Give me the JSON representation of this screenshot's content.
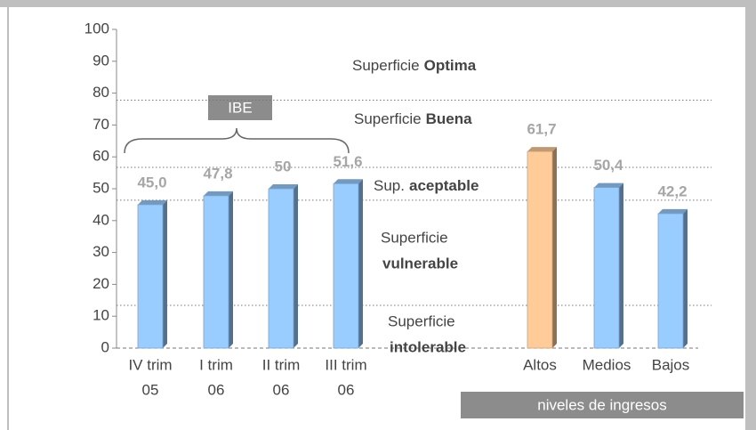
{
  "chart_data": {
    "type": "bar",
    "categories": [
      [
        "IV trim",
        "05"
      ],
      [
        "I trim",
        "06"
      ],
      [
        "II trim",
        "06"
      ],
      [
        "III trim",
        "06"
      ],
      [
        "Altos"
      ],
      [
        "Medios"
      ],
      [
        "Bajos"
      ]
    ],
    "values": [
      45,
      47.8,
      50,
      51.6,
      61.7,
      50.4,
      42.2
    ],
    "value_labels": [
      "45,0",
      "47,8",
      "50",
      "51,6",
      "61,7",
      "50,4",
      "42,2"
    ],
    "colors": [
      "#99ccff",
      "#99ccff",
      "#99ccff",
      "#99ccff",
      "#ffcc99",
      "#99ccff",
      "#99ccff"
    ],
    "ylim": [
      0,
      100
    ],
    "yticks": [
      0,
      10,
      20,
      30,
      40,
      50,
      60,
      70,
      80,
      90,
      100
    ],
    "zone_lines": [
      77.8,
      56.7,
      46.4,
      13.4
    ],
    "zones": [
      {
        "text": "Superficie",
        "bold": "Optima"
      },
      {
        "text": "Superficie",
        "bold": "Buena"
      },
      {
        "text": "Sup.",
        "bold": "aceptable"
      },
      {
        "text": "Superficie",
        "bold": "vulnerable"
      },
      {
        "text": "Superficie",
        "bold": "intolerable"
      }
    ],
    "group_labels": [
      "IBE",
      "niveles de ingresos"
    ]
  }
}
